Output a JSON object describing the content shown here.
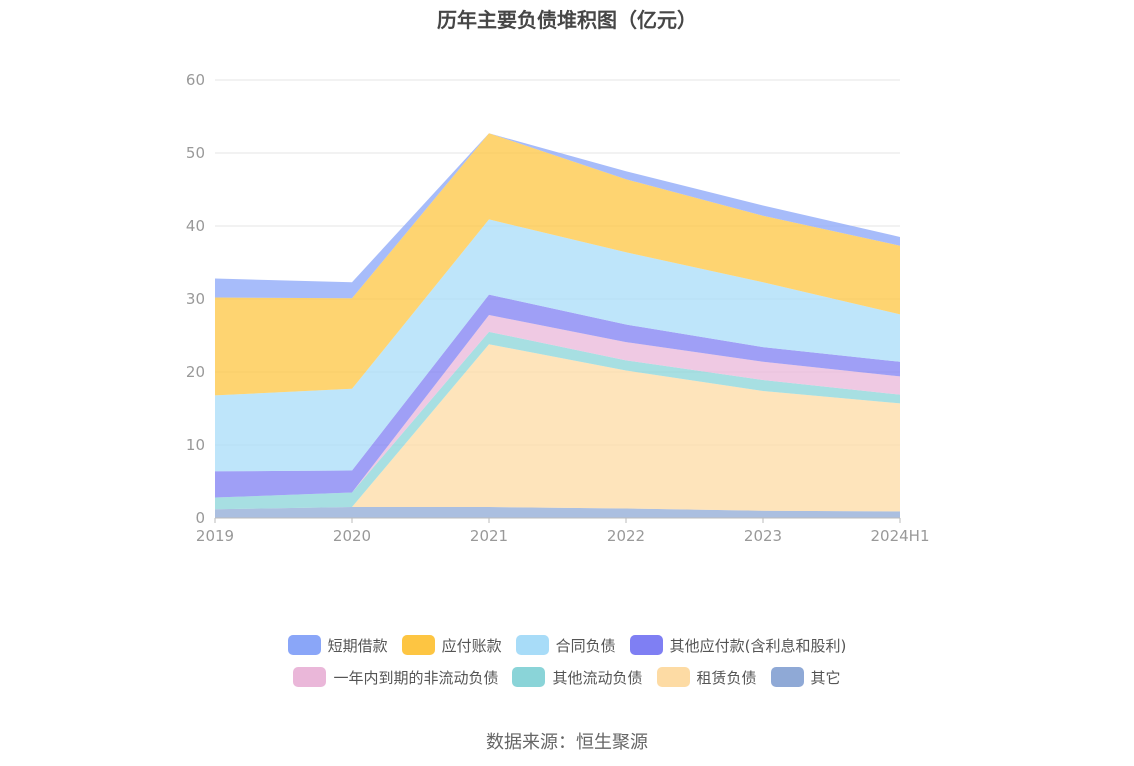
{
  "title": "历年主要负债堆积图（亿元）",
  "source": "数据来源：恒生聚源",
  "chart_data": {
    "type": "area",
    "stacked": true,
    "title": "历年主要负债堆积图（亿元）",
    "categories": [
      "2019",
      "2020",
      "2021",
      "2022",
      "2023",
      "2024H1"
    ],
    "ylim": [
      0,
      60
    ],
    "yticks": [
      0,
      10,
      20,
      30,
      40,
      50,
      60
    ],
    "grid": true,
    "legend_position": "bottom",
    "series": [
      {
        "name": "其它",
        "color": "#8fa9d6",
        "values": [
          1.2,
          1.5,
          1.5,
          1.3,
          1.0,
          0.9
        ]
      },
      {
        "name": "租赁负债",
        "color": "#fddba4",
        "values": [
          0.0,
          0.0,
          22.3,
          18.9,
          16.4,
          14.8
        ]
      },
      {
        "name": "其他流动负债",
        "color": "#8ad4d8",
        "values": [
          1.6,
          2.0,
          1.7,
          1.4,
          1.5,
          1.2
        ]
      },
      {
        "name": "一年内到期的非流动负债",
        "color": "#eab7d9",
        "values": [
          0.0,
          0.0,
          2.3,
          2.5,
          2.5,
          2.5
        ]
      },
      {
        "name": "其他应付款(含利息和股利)",
        "color": "#7f7ff3",
        "values": [
          3.6,
          3.0,
          2.8,
          2.4,
          2.0,
          2.0
        ]
      },
      {
        "name": "合同负债",
        "color": "#a8dcf8",
        "values": [
          10.4,
          11.2,
          10.3,
          9.9,
          8.9,
          6.5
        ]
      },
      {
        "name": "应付账款",
        "color": "#fdc542",
        "values": [
          13.4,
          12.4,
          11.8,
          10.0,
          9.1,
          9.4
        ]
      },
      {
        "name": "短期借款",
        "color": "#8aa6f8",
        "values": [
          2.6,
          2.2,
          0.0,
          1.1,
          1.4,
          1.2
        ]
      }
    ]
  },
  "legend": {
    "row1": [
      {
        "label": "短期借款",
        "color": "#8aa6f8"
      },
      {
        "label": "应付账款",
        "color": "#fdc542"
      },
      {
        "label": "合同负债",
        "color": "#a8dcf8"
      },
      {
        "label": "其他应付款(含利息和股利)",
        "color": "#7f7ff3"
      }
    ],
    "row2": [
      {
        "label": "一年内到期的非流动负债",
        "color": "#eab7d9"
      },
      {
        "label": "其他流动负债",
        "color": "#8ad4d8"
      },
      {
        "label": "租赁负债",
        "color": "#fddba4"
      },
      {
        "label": "其它",
        "color": "#8fa9d6"
      }
    ]
  }
}
